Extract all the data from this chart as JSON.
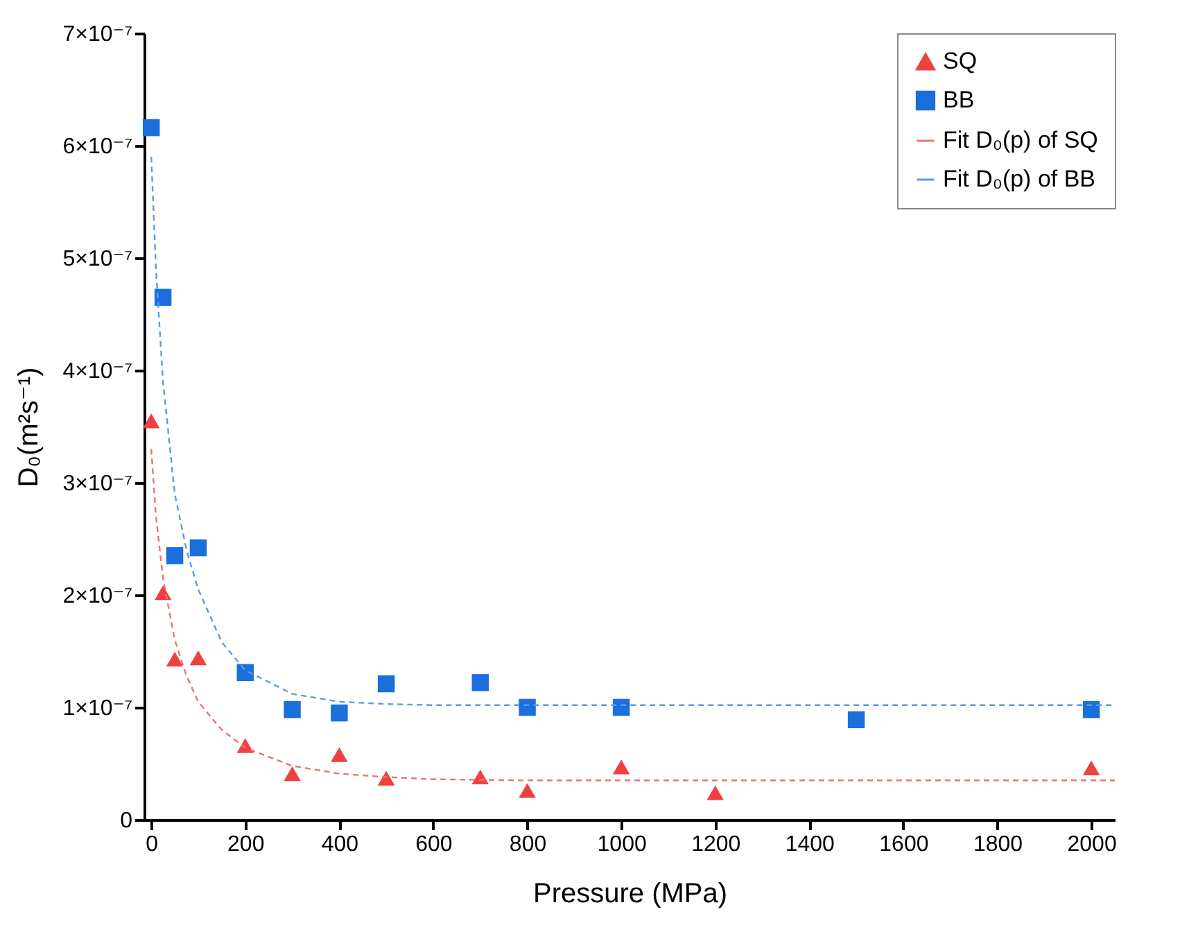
{
  "chart_data": {
    "type": "scatter",
    "xlabel": "Pressure (MPa)",
    "ylabel": "D₀(m²s⁻¹)",
    "xlim": [
      -15,
      2050
    ],
    "xticks": [
      0,
      200,
      400,
      600,
      800,
      1000,
      1200,
      1400,
      1600,
      1800,
      2000
    ],
    "ylim": [
      0,
      7e-07
    ],
    "yticks": [
      0,
      {
        "value": 1e-07,
        "label": "1×10⁻⁷"
      },
      {
        "value": 2e-07,
        "label": "2×10⁻⁷"
      },
      {
        "value": 3e-07,
        "label": "3×10⁻⁷"
      },
      {
        "value": 4e-07,
        "label": "4×10⁻⁷"
      },
      {
        "value": 5e-07,
        "label": "5×10⁻⁷"
      },
      {
        "value": 6e-07,
        "label": "6×10⁻⁷"
      },
      {
        "value": 7e-07,
        "label": "7×10⁻⁷"
      }
    ],
    "grid": false,
    "legend": "top right",
    "series": [
      {
        "name": "SQ",
        "marker": "triangle",
        "color": "#ee4040",
        "x": [
          0,
          25,
          50,
          100,
          200,
          300,
          400,
          500,
          700,
          800,
          1000,
          1200,
          2000
        ],
        "values": [
          3.55e-07,
          2.02e-07,
          1.43e-07,
          1.44e-07,
          6.6e-08,
          4.1e-08,
          5.8e-08,
          3.7e-08,
          3.8e-08,
          2.6e-08,
          4.7e-08,
          2.4e-08,
          4.6e-08
        ]
      },
      {
        "name": "BB",
        "marker": "square",
        "color": "#1b6fdc",
        "x": [
          0,
          25,
          50,
          100,
          200,
          300,
          400,
          500,
          700,
          800,
          1000,
          1500,
          2000
        ],
        "values": [
          6.16e-07,
          4.65e-07,
          2.35e-07,
          2.42e-07,
          1.31e-07,
          9.8e-08,
          9.5e-08,
          1.21e-07,
          1.22e-07,
          1e-07,
          1e-07,
          8.9e-08,
          9.8e-08
        ]
      },
      {
        "name": "Fit D₀(p) of SQ",
        "type": "line",
        "marker": "none",
        "line_style": "dashed",
        "color": "#f07070",
        "x": [
          0,
          10,
          25,
          50,
          75,
          100,
          150,
          200,
          300,
          400,
          500,
          600,
          800,
          1000,
          1500,
          2050
        ],
        "values": [
          3.3e-07,
          2.7e-07,
          2.15e-07,
          1.6e-07,
          1.28e-07,
          1.05e-07,
          8e-08,
          6.4e-08,
          4.8e-08,
          4.1e-08,
          3.8e-08,
          3.6e-08,
          3.5e-08,
          3.5e-08,
          3.5e-08,
          3.5e-08
        ]
      },
      {
        "name": "Fit D₀(p) of BB",
        "type": "line",
        "marker": "none",
        "line_style": "dashed",
        "color": "#5b9be8",
        "x": [
          0,
          10,
          25,
          50,
          75,
          100,
          150,
          200,
          300,
          400,
          500,
          600,
          800,
          1000,
          1500,
          2050
        ],
        "values": [
          5.9e-07,
          4.9e-07,
          3.9e-07,
          2.9e-07,
          2.4e-07,
          2.05e-07,
          1.58e-07,
          1.33e-07,
          1.12e-07,
          1.05e-07,
          1.03e-07,
          1.02e-07,
          1.02e-07,
          1.02e-07,
          1.02e-07,
          1.02e-07
        ]
      }
    ]
  }
}
